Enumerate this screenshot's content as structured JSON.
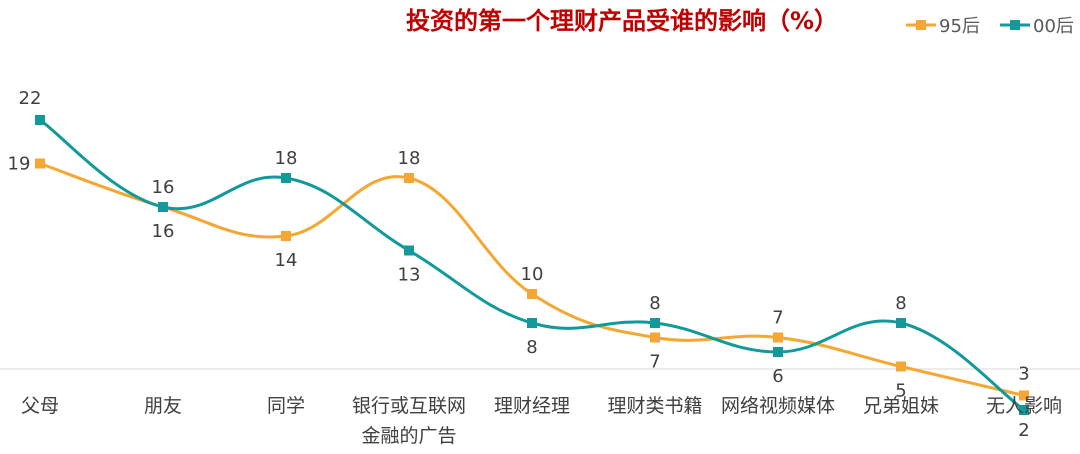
{
  "chart_data": {
    "type": "line",
    "title": "投资的第一个理财产品受谁的影响（%）",
    "categories": [
      [
        "父母"
      ],
      [
        "朋友"
      ],
      [
        "同学"
      ],
      [
        "银行或互联网",
        "金融的广告"
      ],
      [
        "理财经理"
      ],
      [
        "理财类书籍"
      ],
      [
        "网络视频媒体"
      ],
      [
        "兄弟姐妹"
      ],
      [
        "无人影响"
      ]
    ],
    "series": [
      {
        "name": "95后",
        "color": "#f5a733",
        "values": [
          19,
          16,
          14,
          18,
          10,
          7,
          7,
          5,
          3
        ]
      },
      {
        "name": "00后",
        "color": "#12999a",
        "values": [
          22,
          16,
          18,
          13,
          8,
          8,
          6,
          8,
          2
        ]
      }
    ],
    "legend_position": "top-right",
    "grid": false,
    "ylim": [
      0,
      22
    ],
    "smooth": true
  }
}
